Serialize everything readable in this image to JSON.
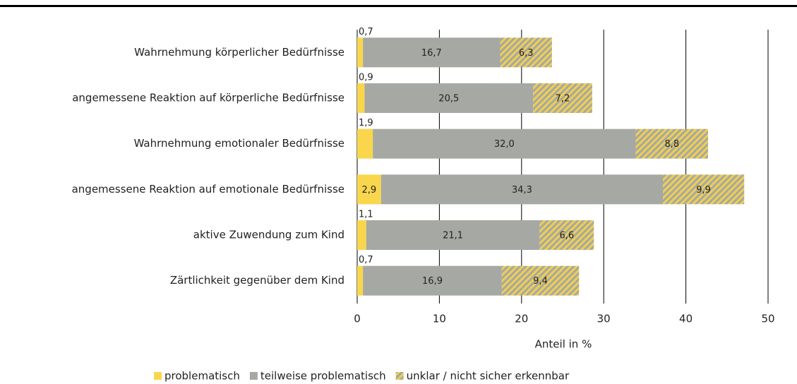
{
  "chart_data": {
    "type": "stacked-barh",
    "categories": [
      "Wahrnehmung körperlicher Bedürfnisse",
      "angemessene Reaktion auf körperliche Bedürfnisse",
      "Wahrnehmung emotionaler Bedürfnisse",
      "angemessene Reaktion auf emotionale Bedürfnisse",
      "aktive Zuwendung zum Kind",
      "Zärtlichkeit gegenüber dem Kind"
    ],
    "series": [
      {
        "name": "problematisch",
        "color": "#f9d64c",
        "values": [
          0.7,
          0.9,
          1.9,
          2.9,
          1.1,
          0.7
        ],
        "value_labels": [
          "0,7",
          "0,9",
          "1,9",
          "2,9",
          "1,1",
          "0,7"
        ]
      },
      {
        "name": "teilweise problematisch",
        "color": "#a6a8a3",
        "values": [
          16.7,
          20.5,
          32.0,
          34.3,
          21.1,
          16.9
        ],
        "value_labels": [
          "16,7",
          "20,5",
          "32,0",
          "34,3",
          "21,1",
          "16,9"
        ]
      },
      {
        "name": "unklar / nicht sicher erkennbar",
        "color": "#efcf52",
        "hatch": "#a6a8a3",
        "values": [
          6.3,
          7.2,
          8.8,
          9.9,
          6.6,
          9.4
        ],
        "value_labels": [
          "6,3",
          "7,2",
          "8,8",
          "9,9",
          "6,6",
          "9,4"
        ]
      }
    ],
    "xlabel": "Anteil in %",
    "xlim": [
      0,
      50
    ],
    "xticks": [
      0,
      10,
      20,
      30,
      40,
      50
    ],
    "grid": true,
    "legend": "bottom"
  }
}
